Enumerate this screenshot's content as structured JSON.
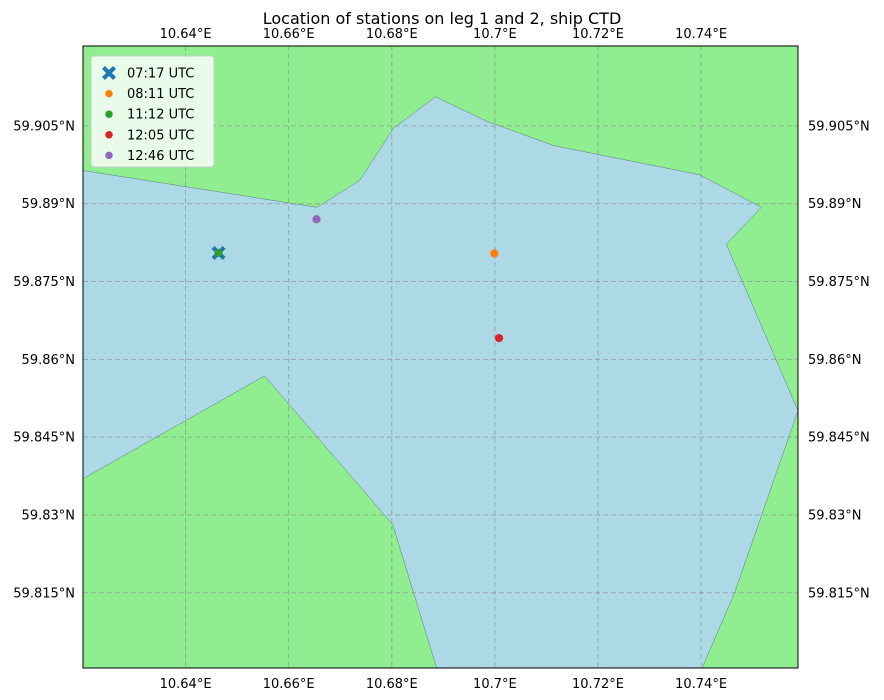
{
  "chart_data": {
    "type": "scatter",
    "title": "Location of stations on leg 1 and 2, ship CTD",
    "xlabel": "",
    "ylabel": "",
    "xlim": [
      10.6201,
      10.7588
    ],
    "ylim": [
      59.8005,
      59.9204
    ],
    "x_ticks": [
      {
        "value": 10.64,
        "label": "10.64°E"
      },
      {
        "value": 10.66,
        "label": "10.66°E"
      },
      {
        "value": 10.68,
        "label": "10.68°E"
      },
      {
        "value": 10.7,
        "label": "10.7°E"
      },
      {
        "value": 10.72,
        "label": "10.72°E"
      },
      {
        "value": 10.74,
        "label": "10.74°E"
      }
    ],
    "y_ticks": [
      {
        "value": 59.815,
        "label": "59.815°N"
      },
      {
        "value": 59.83,
        "label": "59.83°N"
      },
      {
        "value": 59.845,
        "label": "59.845°N"
      },
      {
        "value": 59.86,
        "label": "59.86°N"
      },
      {
        "value": 59.875,
        "label": "59.875°N"
      },
      {
        "value": 59.89,
        "label": "59.89°N"
      },
      {
        "value": 59.905,
        "label": "59.905°N"
      }
    ],
    "grid": true,
    "legend_position": "top-left",
    "land_color": "#90ee90",
    "water_color": "#add8e6",
    "water_polygon": [
      [
        10.6201,
        59.8964
      ],
      [
        10.6655,
        59.8893
      ],
      [
        10.6738,
        59.8945
      ],
      [
        10.6803,
        59.9045
      ],
      [
        10.6885,
        59.9106
      ],
      [
        10.6984,
        59.9059
      ],
      [
        10.7114,
        59.9012
      ],
      [
        10.7397,
        59.8956
      ],
      [
        10.7517,
        59.8893
      ],
      [
        10.7449,
        59.8822
      ],
      [
        10.7588,
        59.8501
      ],
      [
        10.7465,
        59.815
      ],
      [
        10.7402,
        59.8005
      ],
      [
        10.6887,
        59.8005
      ],
      [
        10.6802,
        59.8281
      ],
      [
        10.6553,
        59.8568
      ],
      [
        10.6201,
        59.837
      ]
    ],
    "series": [
      {
        "name": "07:17 UTC",
        "color": "#1f77b4",
        "marker": "X",
        "points": [
          [
            10.6464,
            59.8805
          ]
        ]
      },
      {
        "name": "08:11 UTC",
        "color": "#ff7f0e",
        "marker": "o",
        "points": [
          [
            10.6999,
            59.8804
          ]
        ]
      },
      {
        "name": "11:12 UTC",
        "color": "#2ca02c",
        "marker": "o",
        "points": [
          [
            10.6464,
            59.8805
          ]
        ]
      },
      {
        "name": "12:05 UTC",
        "color": "#d62728",
        "marker": "o",
        "points": [
          [
            10.7008,
            59.8641
          ]
        ]
      },
      {
        "name": "12:46 UTC",
        "color": "#9467bd",
        "marker": "o",
        "points": [
          [
            10.6654,
            59.887
          ]
        ]
      }
    ]
  }
}
